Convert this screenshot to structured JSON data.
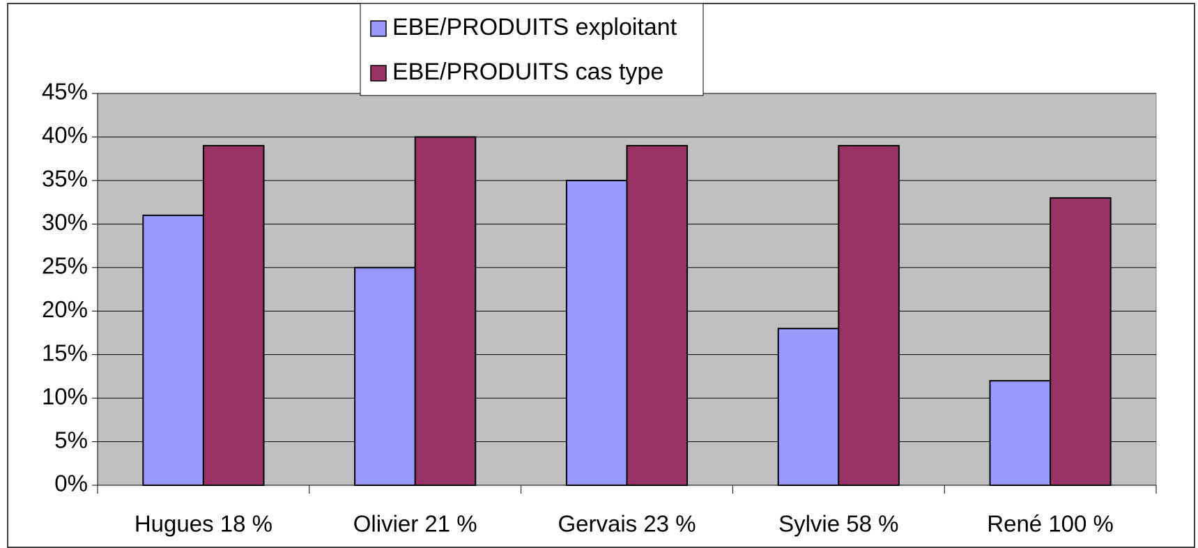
{
  "chart_data": {
    "type": "bar",
    "categories": [
      "Hugues 18 %",
      "Olivier 21 %",
      "Gervais 23 %",
      "Sylvie 58 %",
      "René 100 %"
    ],
    "series": [
      {
        "name": "EBE/PRODUITS exploitant",
        "color": "#9999ff",
        "values": [
          31,
          25,
          35,
          18,
          12
        ]
      },
      {
        "name": "EBE/PRODUITS cas type",
        "color": "#993366",
        "values": [
          39,
          40,
          39,
          39,
          33
        ]
      }
    ],
    "ylim": [
      0,
      45
    ],
    "yticks": [
      {
        "value": 0,
        "label": "0%"
      },
      {
        "value": 5,
        "label": "5%"
      },
      {
        "value": 10,
        "label": "10%"
      },
      {
        "value": 15,
        "label": "15%"
      },
      {
        "value": 20,
        "label": "20%"
      },
      {
        "value": 25,
        "label": "25%"
      },
      {
        "value": 30,
        "label": "30%"
      },
      {
        "value": 35,
        "label": "35%"
      },
      {
        "value": 40,
        "label": "40%"
      },
      {
        "value": 45,
        "label": "45%"
      }
    ],
    "grid": true,
    "plot_background": "#c0c0c0",
    "legend": "top"
  }
}
